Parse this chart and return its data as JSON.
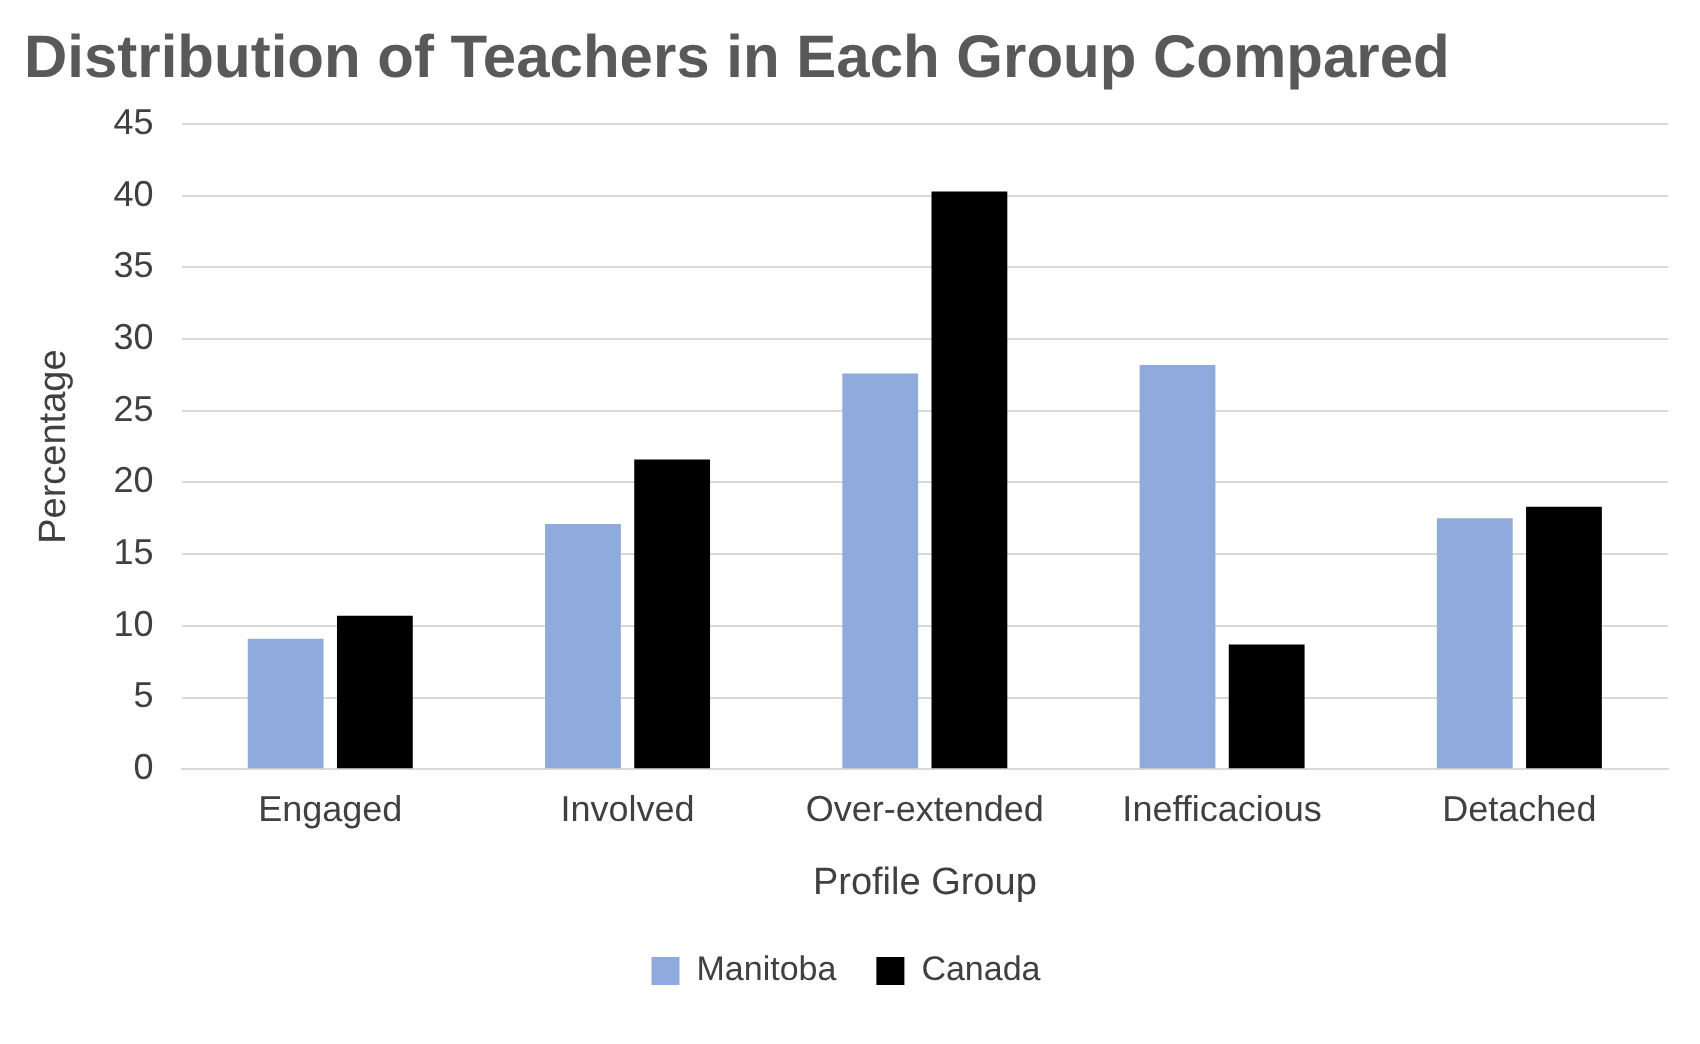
{
  "chart_data": {
    "type": "bar",
    "title": "Distribution of Teachers in Each Group Compared",
    "xlabel": "Profile Group",
    "ylabel": "Percentage",
    "categories": [
      "Engaged",
      "Involved",
      "Over-extended",
      "Inefficacious",
      "Detached"
    ],
    "series": [
      {
        "name": "Manitoba",
        "color": "#8faadc",
        "values": [
          9.1,
          17.1,
          27.6,
          28.2,
          17.5
        ]
      },
      {
        "name": "Canada",
        "color": "#000000",
        "values": [
          10.7,
          21.6,
          40.3,
          8.7,
          18.3
        ]
      }
    ],
    "ylim": [
      0,
      45
    ],
    "yticks": [
      0,
      5,
      10,
      15,
      20,
      25,
      30,
      35,
      40,
      45
    ],
    "grid": "y",
    "legend": "bottom"
  }
}
